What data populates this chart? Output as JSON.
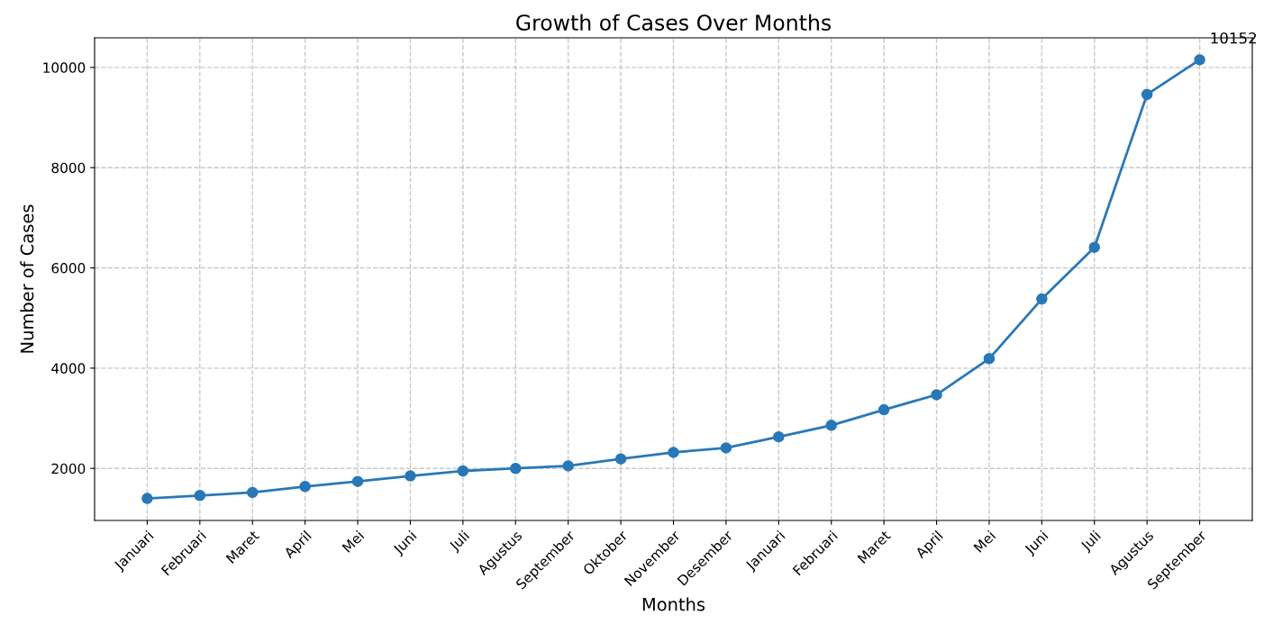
{
  "chart_data": {
    "type": "line",
    "title": "Growth of Cases Over Months",
    "xlabel": "Months",
    "ylabel": "Number of Cases",
    "categories": [
      "Januari",
      "Februari",
      "Maret",
      "April",
      "Mei",
      "Juni",
      "Juli",
      "Agustus",
      "September",
      "Oktober",
      "November",
      "Desember",
      "Januari",
      "Februari",
      "Maret",
      "April",
      "Mei",
      "Juni",
      "Juli",
      "Agustus",
      "September"
    ],
    "series": [
      {
        "color": "#2878b8",
        "values": [
          1400,
          1460,
          1520,
          1640,
          1740,
          1850,
          1950,
          2000,
          2050,
          2190,
          2320,
          2410,
          2630,
          2860,
          3170,
          3470,
          4190,
          5380,
          6410,
          9460,
          10152
        ]
      }
    ],
    "annotations": [
      "10152"
    ],
    "ylim": [
      962,
      10590
    ],
    "yticks": [
      2000,
      4000,
      6000,
      8000,
      10000
    ],
    "grid": true,
    "marker": "circle",
    "line_style": "solid"
  }
}
